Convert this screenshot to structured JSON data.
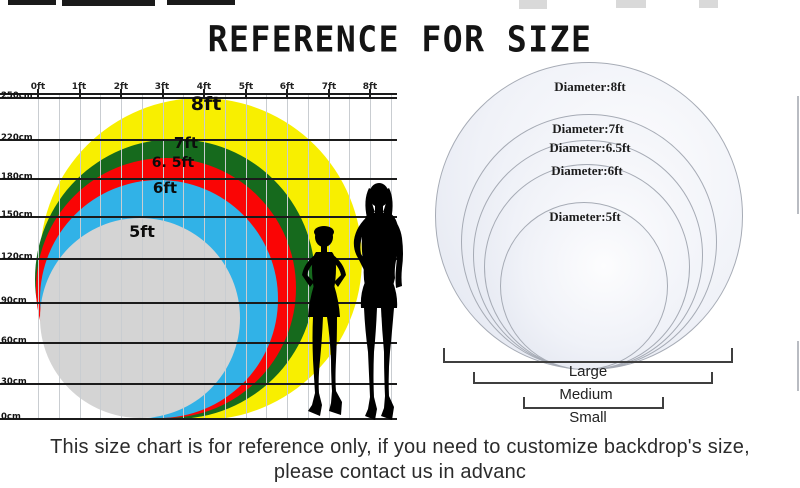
{
  "title": "REFERENCE FOR SIZE",
  "left_chart": {
    "ft_axis": [
      "0ft",
      "1ft",
      "2ft",
      "3ft",
      "4ft",
      "5ft",
      "6ft",
      "7ft",
      "8ft"
    ],
    "cm_axis": [
      "250cm",
      "220cm",
      "180cm",
      "150cm",
      "120cm",
      "90cm",
      "60cm",
      "30cm",
      "0cm"
    ],
    "circles": [
      {
        "label": "8ft",
        "color": "#f8ef00"
      },
      {
        "label": "7ft",
        "color": "#166a1d"
      },
      {
        "label": "6. 5ft",
        "color": "#fa0505"
      },
      {
        "label": "6ft",
        "color": "#31b2e7"
      },
      {
        "label": "5ft",
        "color": "#d4d4d4"
      }
    ]
  },
  "right_chart": {
    "disc_fill": "#e9ecf4",
    "disc_border": "#a6abb5",
    "diameter_labels": [
      "Diameter:8ft",
      "Diameter:7ft",
      "Diameter:6.5ft",
      "Diameter:6ft",
      "Diameter:5ft"
    ],
    "bracket_labels": [
      "Large",
      "Medium",
      "Small"
    ]
  },
  "footer": {
    "line1": "This size chart is for reference only, if you need to customize backdrop's size,",
    "line2": "please contact us in advanc"
  },
  "chart_data": {
    "type": "table",
    "title": "REFERENCE FOR SIZE",
    "columns": [
      "diameter",
      "left_chart_color"
    ],
    "rows": [
      [
        "8ft",
        "yellow"
      ],
      [
        "7ft",
        "green"
      ],
      [
        "6.5ft",
        "red"
      ],
      [
        "6ft",
        "blue"
      ],
      [
        "5ft",
        "gray"
      ]
    ],
    "left_axis_cm": [
      250,
      220,
      180,
      150,
      120,
      90,
      60,
      30,
      0
    ],
    "top_axis_ft": [
      0,
      1,
      2,
      3,
      4,
      5,
      6,
      7,
      8
    ],
    "size_groups": [
      "Large",
      "Medium",
      "Small"
    ],
    "layout_hint": "Nested tangent circles; each circle's top aligns with its diameter height on the cm grid"
  }
}
